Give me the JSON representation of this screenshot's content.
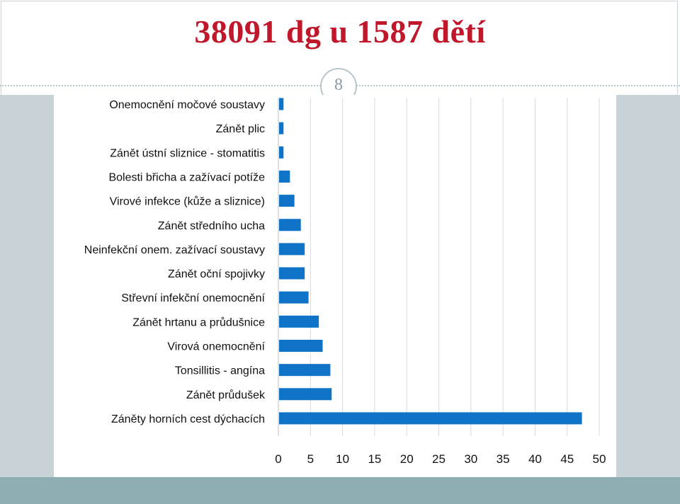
{
  "slide": {
    "title": "38091 dg u 1587 dětí",
    "page_number": "8"
  },
  "colors": {
    "title": "#c0172b",
    "bar": "#0f73c8",
    "grid": "#d9d9d9",
    "side_panel": "#c8d3d8",
    "bottom_band": "#8faeb3"
  },
  "chart_data": {
    "type": "bar",
    "orientation": "horizontal",
    "categories": [
      "Onemocnění močové soustavy",
      "Zánět plic",
      "Zánět ústní sliznice - stomatitis",
      "Bolesti břicha a zažívací potíže",
      "Virové infekce (kůže a sliznice)",
      "Zánět středního ucha",
      "Neinfekční onem. zažívací soustavy",
      "Zánět oční spojivky",
      "Střevní infekční onemocnění",
      "Zánět hrtanu a průdušnice",
      "Virová onemocnění",
      "Tonsillitis - angína",
      "Zánět průdušek",
      "Záněty horních cest dýchacích"
    ],
    "values": [
      0.8,
      0.8,
      0.8,
      1.8,
      2.5,
      3.5,
      4.1,
      4.1,
      4.7,
      6.3,
      6.9,
      8.1,
      8.3,
      47.3
    ],
    "x_ticks": [
      "0",
      "5",
      "10",
      "15",
      "20",
      "25",
      "30",
      "35",
      "40",
      "45",
      "50"
    ],
    "xlim": [
      0,
      50
    ],
    "grid": true,
    "legend": "none",
    "title": "",
    "xlabel": "",
    "ylabel": ""
  }
}
